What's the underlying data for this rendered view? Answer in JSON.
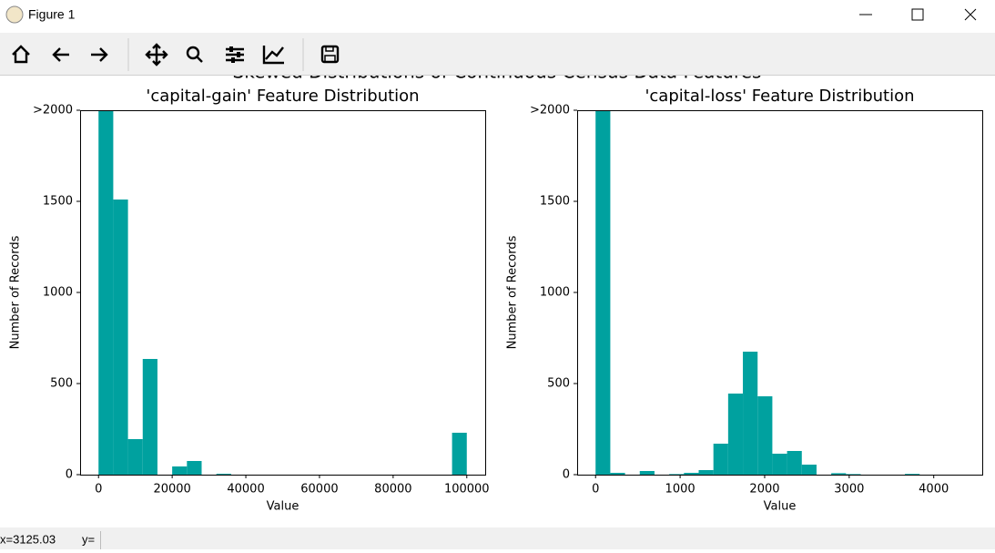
{
  "window": {
    "title": "Figure 1"
  },
  "figure_title": "Skewed Distributions of Continuous Census Data Features",
  "status": {
    "x": "x=3125.03",
    "y": "y="
  },
  "chart_data": [
    {
      "type": "histogram",
      "title": "'capital-gain' Feature Distribution",
      "x_label": "Value",
      "y_label": "Number of Records",
      "color": "#00a19f",
      "bins": [
        0,
        4000,
        8000,
        12000,
        16000,
        20000,
        24000,
        28000,
        32000,
        36000,
        40000,
        44000,
        48000,
        52000,
        56000,
        60000,
        64000,
        68000,
        72000,
        76000,
        80000,
        84000,
        88000,
        92000,
        96000,
        100000
      ],
      "counts": [
        2000,
        1510,
        195,
        635,
        0,
        45,
        75,
        0,
        5,
        0,
        0,
        0,
        0,
        0,
        0,
        0,
        0,
        0,
        0,
        0,
        0,
        0,
        0,
        0,
        230
      ],
      "xlim": [
        -5000,
        105000
      ],
      "ylim": [
        0,
        2000
      ],
      "xticks": [
        0,
        20000,
        40000,
        60000,
        80000,
        100000
      ],
      "yticks": [
        0,
        500,
        1000,
        1500,
        {
          "value": 2000,
          "label": ">2000"
        }
      ]
    },
    {
      "type": "histogram",
      "title": "'capital-loss' Feature Distribution",
      "x_label": "Value",
      "y_label": "Number of Records",
      "color": "#00a19f",
      "bins": [
        0,
        174.24,
        348.48,
        522.72,
        696.96,
        871.2,
        1045.44,
        1219.68,
        1393.92,
        1568.16,
        1742.4,
        1916.64,
        2090.88,
        2265.12,
        2439.36,
        2613.6,
        2787.84,
        2962.08,
        3136.32,
        3310.56,
        3484.8,
        3659.04,
        3833.28,
        4007.52,
        4181.76,
        4356
      ],
      "counts": [
        2000,
        10,
        0,
        20,
        0,
        3,
        10,
        25,
        170,
        445,
        675,
        430,
        115,
        130,
        55,
        0,
        8,
        3,
        0,
        0,
        0,
        4,
        0,
        0,
        0
      ],
      "xlim": [
        -217.8,
        4573.8
      ],
      "ylim": [
        0,
        2000
      ],
      "xticks": [
        0,
        1000,
        2000,
        3000,
        4000
      ],
      "yticks": [
        0,
        500,
        1000,
        1500,
        {
          "value": 2000,
          "label": ">2000"
        }
      ]
    }
  ]
}
